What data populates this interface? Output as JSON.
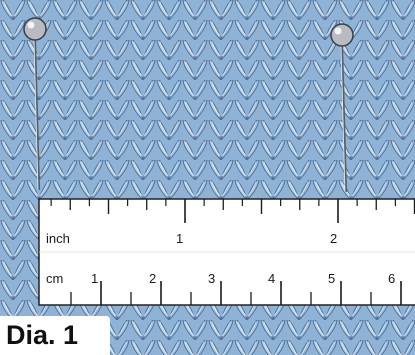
{
  "figure": {
    "caption": "Dia. 1",
    "colors": {
      "knit_fabric": "#8fb3d6",
      "knit_shadow": "#4f6f96",
      "knit_highlight": "#d9e8f5",
      "ruler": "#ffffff",
      "pin_head": "#b8bcc2"
    }
  },
  "ruler": {
    "inch_unit": "inch",
    "cm_unit": "cm",
    "inch_numbers": [
      "1",
      "2"
    ],
    "cm_numbers": [
      "1",
      "2",
      "3",
      "4",
      "5",
      "6"
    ]
  },
  "pins": {
    "count": 2,
    "icon": "straight-pin-icon"
  }
}
